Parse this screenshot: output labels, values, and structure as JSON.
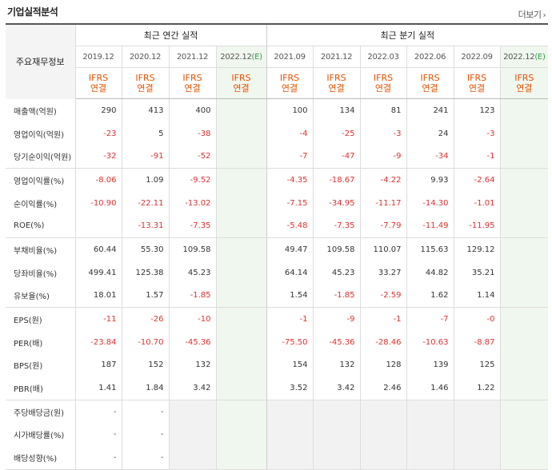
{
  "header": {
    "title": "기업실적분석",
    "more_label": "더보기"
  },
  "table": {
    "row_header_label": "주요재무정보",
    "annual_group_label": "최근 연간 실적",
    "quarter_group_label": "최근 분기 실적",
    "annual_periods": [
      "2019.12",
      "2020.12",
      "2021.12",
      "2022.12"
    ],
    "quarter_periods": [
      "2021.09",
      "2021.12",
      "2022.03",
      "2022.06",
      "2022.09",
      "2022.12"
    ],
    "estimate_suffix": "(E)",
    "basis_line1": "IFRS",
    "basis_line2": "연결",
    "rows": [
      {
        "label": "매출액(억원)",
        "annual": [
          "290",
          "413",
          "400",
          ""
        ],
        "quarter": [
          "100",
          "134",
          "81",
          "241",
          "123",
          ""
        ]
      },
      {
        "label": "영업이익(억원)",
        "annual": [
          "-23",
          "5",
          "-38",
          ""
        ],
        "quarter": [
          "-4",
          "-25",
          "-3",
          "24",
          "-3",
          ""
        ]
      },
      {
        "label": "당기순이익(억원)",
        "annual": [
          "-32",
          "-91",
          "-52",
          ""
        ],
        "quarter": [
          "-7",
          "-47",
          "-9",
          "-34",
          "-1",
          ""
        ]
      },
      {
        "label": "영업이익률(%)",
        "annual": [
          "-8.06",
          "1.09",
          "-9.52",
          ""
        ],
        "quarter": [
          "-4.35",
          "-18.67",
          "-4.22",
          "9.93",
          "-2.64",
          ""
        ]
      },
      {
        "label": "순이익률(%)",
        "annual": [
          "-10.90",
          "-22.11",
          "-13.02",
          ""
        ],
        "quarter": [
          "-7.15",
          "-34.95",
          "-11.17",
          "-14.30",
          "-1.01",
          ""
        ]
      },
      {
        "label": "ROE(%)",
        "annual": [
          "",
          "-13.31",
          "-7.35",
          ""
        ],
        "quarter": [
          "-5.48",
          "-7.35",
          "-7.79",
          "-11.49",
          "-11.95",
          ""
        ]
      },
      {
        "label": "부채비율(%)",
        "annual": [
          "60.44",
          "55.30",
          "109.58",
          ""
        ],
        "quarter": [
          "49.47",
          "109.58",
          "110.07",
          "115.63",
          "129.12",
          ""
        ]
      },
      {
        "label": "당좌비율(%)",
        "annual": [
          "499.41",
          "125.38",
          "45.23",
          ""
        ],
        "quarter": [
          "64.14",
          "45.23",
          "33.27",
          "44.82",
          "35.21",
          ""
        ]
      },
      {
        "label": "유보율(%)",
        "annual": [
          "18.01",
          "1.57",
          "-1.85",
          ""
        ],
        "quarter": [
          "1.54",
          "-1.85",
          "-2.59",
          "1.62",
          "1.14",
          ""
        ]
      },
      {
        "label": "EPS(원)",
        "annual": [
          "-11",
          "-26",
          "-10",
          ""
        ],
        "quarter": [
          "-1",
          "-9",
          "-1",
          "-7",
          "-0",
          ""
        ]
      },
      {
        "label": "PER(배)",
        "annual": [
          "-23.84",
          "-10.70",
          "-45.36",
          ""
        ],
        "quarter": [
          "-75.50",
          "-45.36",
          "-28.46",
          "-10.63",
          "-8.87",
          ""
        ]
      },
      {
        "label": "BPS(원)",
        "annual": [
          "187",
          "152",
          "132",
          ""
        ],
        "quarter": [
          "154",
          "132",
          "128",
          "139",
          "125",
          ""
        ]
      },
      {
        "label": "PBR(배)",
        "annual": [
          "1.41",
          "1.84",
          "3.42",
          ""
        ],
        "quarter": [
          "3.52",
          "3.42",
          "2.46",
          "1.46",
          "1.22",
          ""
        ]
      },
      {
        "label": "주당배당금(원)",
        "annual": [
          "-",
          "-",
          "",
          ""
        ],
        "quarter": [
          "",
          "",
          "",
          "",
          "",
          ""
        ]
      },
      {
        "label": "시가배당률(%)",
        "annual": [
          "-",
          "-",
          "",
          ""
        ],
        "quarter": [
          "",
          "",
          "",
          "",
          "",
          ""
        ]
      },
      {
        "label": "배당성향(%)",
        "annual": [
          "-",
          "-",
          "",
          ""
        ],
        "quarter": [
          "",
          "",
          "",
          "",
          "",
          ""
        ]
      }
    ]
  },
  "colors": {
    "negative": "#e03131",
    "basis": "#e65100",
    "estimate_bg": "#f0f7ee",
    "estimate_text": "#2f9e44"
  }
}
